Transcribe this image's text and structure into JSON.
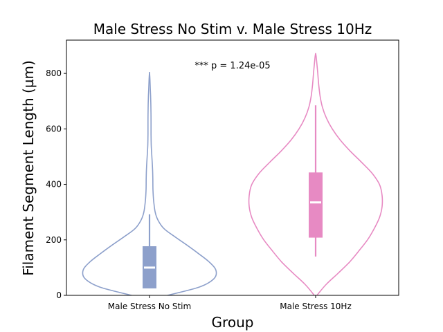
{
  "chart_data": {
    "type": "violin",
    "title": "Male Stress No Stim v. Male Stress 10Hz",
    "xlabel": "Group",
    "ylabel": "Filament Segment Length (µm)",
    "ylim": [
      0,
      920
    ],
    "yticks": [
      0,
      200,
      400,
      600,
      800
    ],
    "categories": [
      "Male Stress No Stim",
      "Male Stress 10Hz"
    ],
    "annotation": "*** p = 1.24e-05",
    "grid": false,
    "series": [
      {
        "category": "Male Stress No Stim",
        "color": "#8da0cb",
        "whisker_low": 25,
        "q1": 25,
        "median": 100,
        "q3": 177,
        "whisker_high": 292,
        "density_profile": [
          [
            0,
            0.27
          ],
          [
            30,
            0.75
          ],
          [
            60,
            0.97
          ],
          [
            90,
            1.0
          ],
          [
            120,
            0.9
          ],
          [
            150,
            0.74
          ],
          [
            180,
            0.57
          ],
          [
            210,
            0.39
          ],
          [
            240,
            0.22
          ],
          [
            270,
            0.13
          ],
          [
            300,
            0.085
          ],
          [
            340,
            0.063
          ],
          [
            380,
            0.052
          ],
          [
            420,
            0.05
          ],
          [
            460,
            0.045
          ],
          [
            500,
            0.035
          ],
          [
            540,
            0.026
          ],
          [
            580,
            0.023
          ],
          [
            620,
            0.023
          ],
          [
            660,
            0.022
          ],
          [
            700,
            0.019
          ],
          [
            740,
            0.013
          ],
          [
            780,
            0.006
          ],
          [
            805,
            0.0
          ]
        ]
      },
      {
        "category": "Male Stress 10Hz",
        "color": "#e78ac3",
        "whisker_low": 140,
        "q1": 208,
        "median": 335,
        "q3": 443,
        "whisker_high": 685,
        "density_profile": [
          [
            0,
            0.02
          ],
          [
            40,
            0.16
          ],
          [
            80,
            0.34
          ],
          [
            120,
            0.51
          ],
          [
            160,
            0.65
          ],
          [
            200,
            0.78
          ],
          [
            240,
            0.88
          ],
          [
            280,
            0.96
          ],
          [
            320,
            1.0
          ],
          [
            360,
            1.0
          ],
          [
            400,
            0.96
          ],
          [
            440,
            0.85
          ],
          [
            480,
            0.69
          ],
          [
            520,
            0.52
          ],
          [
            560,
            0.37
          ],
          [
            600,
            0.25
          ],
          [
            640,
            0.16
          ],
          [
            680,
            0.1
          ],
          [
            720,
            0.066
          ],
          [
            760,
            0.046
          ],
          [
            800,
            0.032
          ],
          [
            840,
            0.017
          ],
          [
            860,
            0.008
          ],
          [
            873,
            0.0
          ]
        ]
      }
    ]
  }
}
